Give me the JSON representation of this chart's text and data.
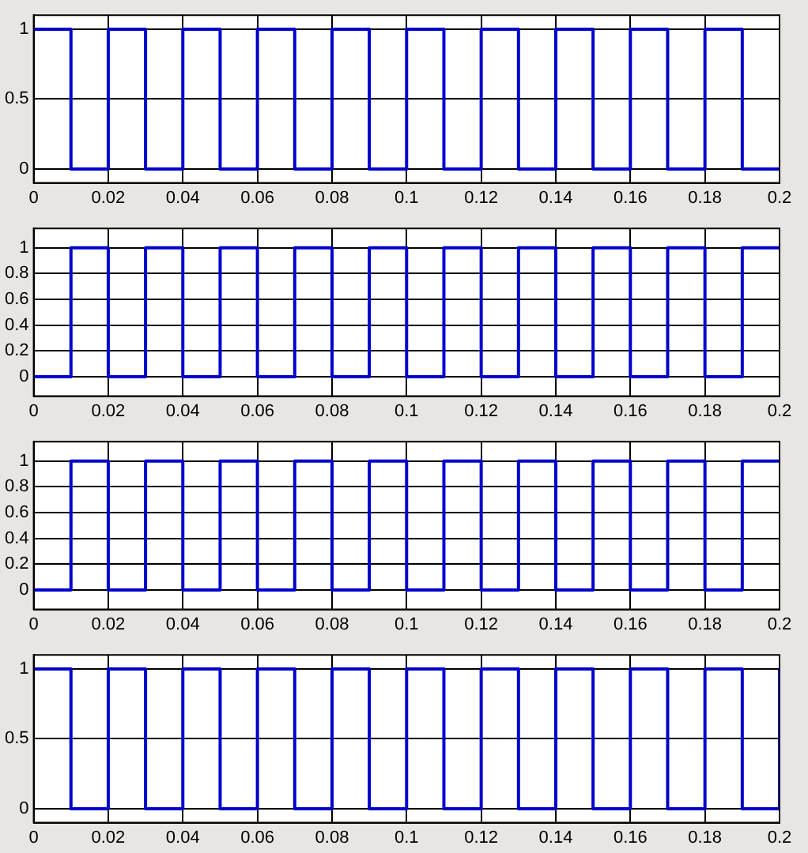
{
  "chart_data": [
    {
      "type": "step",
      "x": [
        0,
        0.01,
        0.02,
        0.03,
        0.04,
        0.05,
        0.06,
        0.07,
        0.08,
        0.09,
        0.1,
        0.11,
        0.12,
        0.13,
        0.14,
        0.15,
        0.16,
        0.17,
        0.18,
        0.19,
        0.2
      ],
      "series": [
        {
          "color": "#0000cc",
          "values": [
            1,
            0,
            1,
            0,
            1,
            0,
            1,
            0,
            1,
            0,
            1,
            0,
            1,
            0,
            1,
            0,
            1,
            0,
            1,
            0,
            0
          ]
        }
      ],
      "xlim": [
        0,
        0.2
      ],
      "xticks": [
        0,
        0.02,
        0.04,
        0.06,
        0.08,
        0.1,
        0.12,
        0.14,
        0.16,
        0.18,
        0.2
      ],
      "ylim": [
        -0.1,
        1.1
      ],
      "yticks": [
        0,
        0.5,
        1
      ],
      "grid": true,
      "legend": false
    },
    {
      "type": "step",
      "x": [
        0,
        0.01,
        0.02,
        0.03,
        0.04,
        0.05,
        0.06,
        0.07,
        0.08,
        0.09,
        0.1,
        0.11,
        0.12,
        0.13,
        0.14,
        0.15,
        0.16,
        0.17,
        0.18,
        0.19,
        0.2
      ],
      "series": [
        {
          "color": "#0000cc",
          "values": [
            0,
            1,
            0,
            1,
            0,
            1,
            0,
            1,
            0,
            1,
            0,
            1,
            0,
            1,
            0,
            1,
            0,
            1,
            0,
            1,
            1
          ]
        }
      ],
      "xlim": [
        0,
        0.2
      ],
      "xticks": [
        0,
        0.02,
        0.04,
        0.06,
        0.08,
        0.1,
        0.12,
        0.14,
        0.16,
        0.18,
        0.2
      ],
      "ylim": [
        -0.15,
        1.15
      ],
      "yticks": [
        0,
        0.2,
        0.4,
        0.6,
        0.8,
        1
      ],
      "grid": true,
      "legend": false
    },
    {
      "type": "step",
      "x": [
        0,
        0.01,
        0.02,
        0.03,
        0.04,
        0.05,
        0.06,
        0.07,
        0.08,
        0.09,
        0.1,
        0.11,
        0.12,
        0.13,
        0.14,
        0.15,
        0.16,
        0.17,
        0.18,
        0.19,
        0.2
      ],
      "series": [
        {
          "color": "#0000cc",
          "values": [
            0,
            1,
            0,
            1,
            0,
            1,
            0,
            1,
            0,
            1,
            0,
            1,
            0,
            1,
            0,
            1,
            0,
            1,
            0,
            1,
            1
          ]
        }
      ],
      "xlim": [
        0,
        0.2
      ],
      "xticks": [
        0,
        0.02,
        0.04,
        0.06,
        0.08,
        0.1,
        0.12,
        0.14,
        0.16,
        0.18,
        0.2
      ],
      "ylim": [
        -0.15,
        1.15
      ],
      "yticks": [
        0,
        0.2,
        0.4,
        0.6,
        0.8,
        1
      ],
      "grid": true,
      "legend": false
    },
    {
      "type": "step",
      "x": [
        0,
        0.01,
        0.02,
        0.03,
        0.04,
        0.05,
        0.06,
        0.07,
        0.08,
        0.09,
        0.1,
        0.11,
        0.12,
        0.13,
        0.14,
        0.15,
        0.16,
        0.17,
        0.18,
        0.19,
        0.2
      ],
      "series": [
        {
          "color": "#0000cc",
          "values": [
            1,
            0,
            1,
            0,
            1,
            0,
            1,
            0,
            1,
            0,
            1,
            0,
            1,
            0,
            1,
            0,
            1,
            0,
            1,
            0,
            1
          ]
        }
      ],
      "xlim": [
        0,
        0.2
      ],
      "xticks": [
        0,
        0.02,
        0.04,
        0.06,
        0.08,
        0.1,
        0.12,
        0.14,
        0.16,
        0.18,
        0.2
      ],
      "ylim": [
        -0.1,
        1.1
      ],
      "yticks": [
        0,
        0.5,
        1
      ],
      "grid": true,
      "legend": false
    }
  ]
}
